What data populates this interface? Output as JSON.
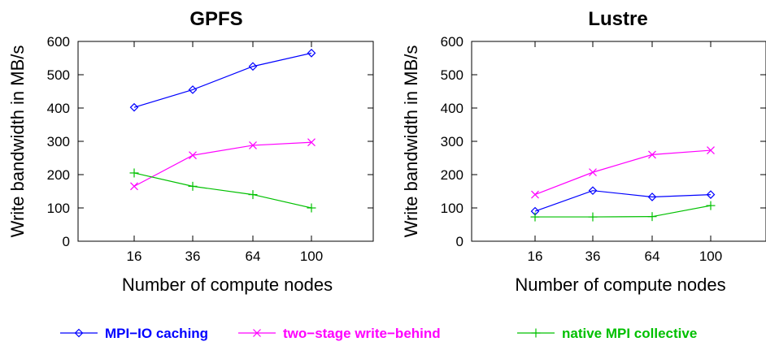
{
  "chart_data": [
    {
      "type": "line",
      "title": "GPFS",
      "xlabel": "Number of compute nodes",
      "ylabel": "Write bandwidth in MB/s",
      "categories": [
        "16",
        "36",
        "64",
        "100"
      ],
      "ylim": [
        0,
        600
      ],
      "yticks": [
        "0",
        "100",
        "200",
        "300",
        "400",
        "500",
        "600"
      ],
      "grid": false,
      "series": [
        {
          "name": "MPI−IO caching",
          "values": [
            402,
            455,
            525,
            565
          ]
        },
        {
          "name": "two−stage write−behind",
          "values": [
            165,
            258,
            288,
            297
          ]
        },
        {
          "name": "native MPI collective",
          "values": [
            205,
            165,
            140,
            100
          ]
        }
      ]
    },
    {
      "type": "line",
      "title": "Lustre",
      "xlabel": "Number of compute nodes",
      "ylabel": "Write bandwidth in MB/s",
      "categories": [
        "16",
        "36",
        "64",
        "100"
      ],
      "ylim": [
        0,
        600
      ],
      "yticks": [
        "0",
        "100",
        "200",
        "300",
        "400",
        "500",
        "600"
      ],
      "grid": false,
      "series": [
        {
          "name": "MPI−IO caching",
          "values": [
            90,
            152,
            133,
            140
          ]
        },
        {
          "name": "two−stage write−behind",
          "values": [
            140,
            207,
            260,
            273
          ]
        },
        {
          "name": "native MPI collective",
          "values": [
            73,
            73,
            74,
            107
          ]
        }
      ]
    }
  ],
  "legend": {
    "placement": "bottom",
    "items": [
      {
        "label": "MPI−IO caching",
        "color": "#0000ff",
        "marker": "diamond"
      },
      {
        "label": "two−stage write−behind",
        "color": "#ff00ff",
        "marker": "cross"
      },
      {
        "label": "native MPI collective",
        "color": "#00c000",
        "marker": "plus"
      }
    ]
  }
}
